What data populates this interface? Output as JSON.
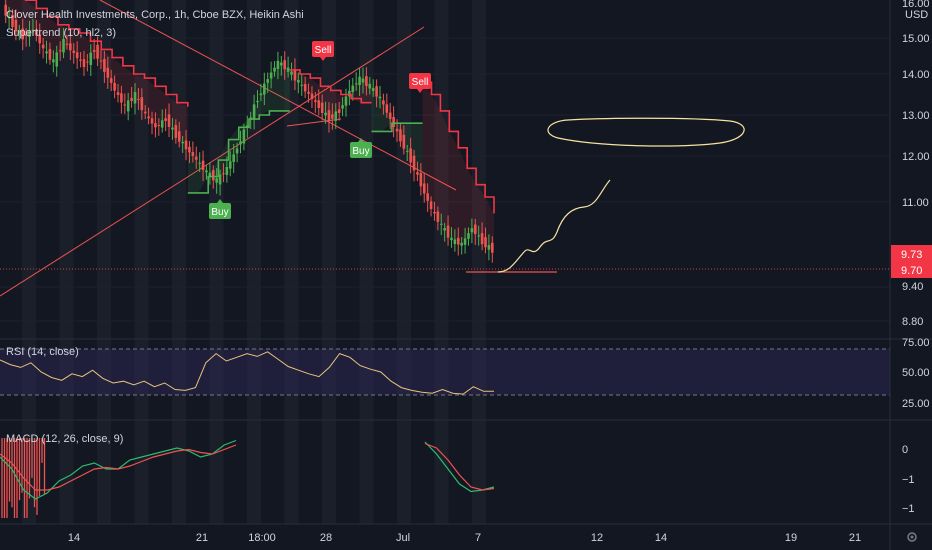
{
  "header": {
    "symbol": "Clover Health Investments, Corp., 1h, Cboe BZX, Heikin Ashi",
    "supertrend": "Supertrend (10, hl2, 3)"
  },
  "price_axis": {
    "currency": "USD",
    "labels": [
      "16.00",
      "15.00",
      "14.00",
      "13.00",
      "12.00",
      "11.00",
      "9.40",
      "8.80"
    ],
    "current_badge": "9.73",
    "last_badge": "9.70"
  },
  "rsi": {
    "label": "RSI (14, close)",
    "levels": [
      "75.00",
      "50.00",
      "25.00"
    ]
  },
  "macd": {
    "label": "MACD (12, 26, close, 9)",
    "levels": [
      "0",
      "−1",
      "−1"
    ]
  },
  "time_axis": {
    "labels": [
      "14",
      "21",
      "18:00",
      "28",
      "Jul",
      "7",
      "12",
      "14",
      "19",
      "21"
    ]
  },
  "signals": [
    {
      "kind": "sell",
      "label": "Sell"
    },
    {
      "kind": "sell",
      "label": "Sell"
    },
    {
      "kind": "buy",
      "label": "Buy"
    },
    {
      "kind": "buy",
      "label": "Buy"
    }
  ],
  "colors": {
    "background": "#131722",
    "candle_up": "#4caf50",
    "candle_down": "#ef5350",
    "supertrend_up": "#4caf50",
    "supertrend_down": "#f23645",
    "rsi_line": "#e8c57a",
    "rsi_band": "#2a2450",
    "macd_line": "#2bbb6e",
    "signal_line": "#ef5350",
    "drawing": "#f7e3a1",
    "trendline": "#ef5350"
  },
  "chart_data": {
    "type": "candlestick",
    "close_series": [
      15.6,
      15.2,
      14.9,
      15.1,
      14.6,
      14.3,
      14.8,
      14.5,
      14.2,
      14.6,
      14.1,
      13.6,
      13.2,
      13.5,
      13.0,
      12.7,
      12.9,
      12.5,
      12.2,
      11.9,
      11.6,
      11.4,
      11.7,
      12.2,
      12.8,
      13.4,
      13.9,
      14.3,
      14.1,
      13.8,
      13.5,
      13.2,
      12.9,
      13.1,
      13.6,
      13.9,
      13.7,
      13.4,
      12.9,
      12.4,
      11.9,
      11.3,
      10.7,
      10.3,
      9.95,
      9.85,
      10.25,
      9.9,
      9.7
    ],
    "supertrend_segments": [
      {
        "trend": "down",
        "values": [
          16.2,
          16.0,
          15.8,
          15.6,
          15.4,
          15.2,
          15.1,
          15.0,
          14.8,
          14.6,
          14.4,
          14.2,
          14.0,
          13.9,
          13.7,
          13.5,
          13.3,
          13.2
        ]
      },
      {
        "trend": "up",
        "values": [
          11.1,
          11.1,
          11.5,
          11.9,
          12.4,
          12.7,
          12.9,
          13.0,
          13.1,
          13.1,
          13.1
        ]
      },
      {
        "trend": "down",
        "values": [
          14.1,
          14.0,
          13.9,
          13.7,
          13.6,
          13.5,
          13.4,
          13.3,
          13.3
        ]
      },
      {
        "trend": "up",
        "values": [
          12.6,
          12.6,
          12.8,
          12.8,
          12.8,
          12.8
        ]
      },
      {
        "trend": "down",
        "values": [
          13.8,
          13.5,
          13.1,
          12.6,
          12.2,
          11.7,
          11.3,
          11.0,
          10.6
        ]
      }
    ],
    "rsi_series": [
      63,
      58,
      55,
      60,
      50,
      44,
      41,
      48,
      45,
      52,
      43,
      38,
      40,
      36,
      40,
      34,
      38,
      31,
      30,
      33,
      60,
      70,
      62,
      66,
      70,
      67,
      72,
      64,
      56,
      52,
      48,
      45,
      55,
      70,
      66,
      57,
      53,
      50,
      40,
      33,
      30,
      28,
      27,
      31,
      27,
      26,
      34,
      29,
      29
    ],
    "macd_series": [
      -0.2,
      -0.6,
      -1.3,
      -1.6,
      -1.4,
      -1.0,
      -0.8,
      -0.5,
      -0.4,
      -0.6,
      -0.6,
      -0.3,
      -0.2,
      -0.1,
      0.0,
      0.1,
      0.0,
      -0.2,
      -0.1,
      0.2,
      0.35
    ],
    "signal_series": [
      -0.1,
      -0.4,
      -0.9,
      -1.3,
      -1.3,
      -1.2,
      -1.0,
      -0.8,
      -0.6,
      -0.55,
      -0.6,
      -0.5,
      -0.35,
      -0.2,
      -0.1,
      0.0,
      0.05,
      -0.05,
      -0.1,
      0.05,
      0.2
    ],
    "macd_series_late": [
      0.3,
      -0.1,
      -0.6,
      -1.1,
      -1.35,
      -1.3,
      -1.2
    ],
    "signal_series_late": [
      0.25,
      0.1,
      -0.3,
      -0.8,
      -1.2,
      -1.3,
      -1.25
    ],
    "ylim": [
      8.6,
      16.1
    ],
    "rsi_ylim": [
      15,
      85
    ]
  }
}
